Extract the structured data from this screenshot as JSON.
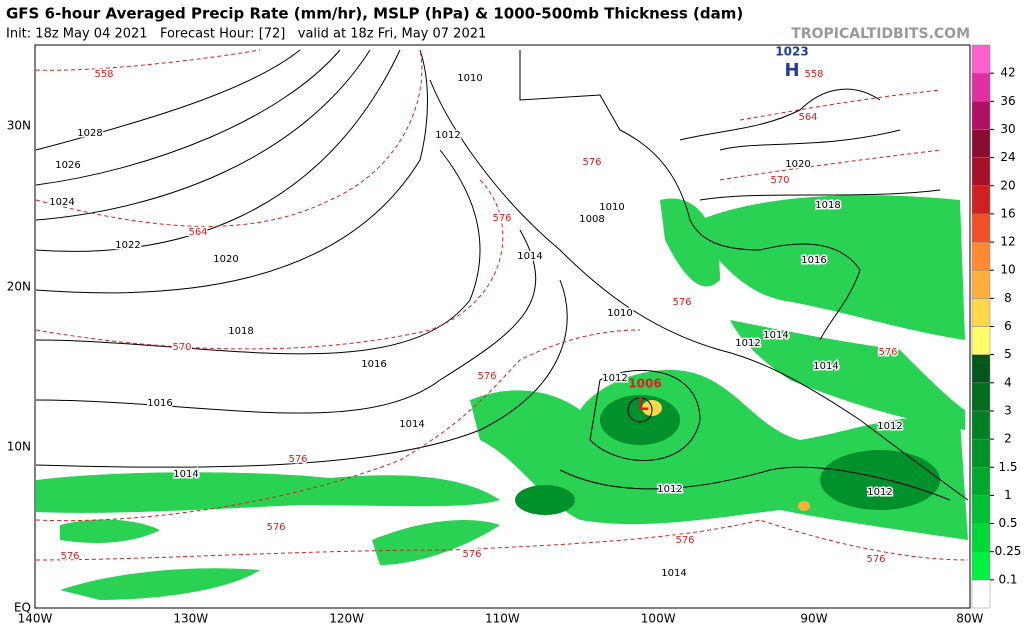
{
  "header": {
    "title": "GFS 6-hour Averaged Precip Rate (mm/hr), MSLP (hPa) & 1000-500mb Thickness (dam)",
    "subtitle": "Init: 18z May 04 2021   Forecast Hour: [72]   valid at 18z Fri, May 07 2021",
    "watermark": "TROPICALTIDBITS.COM"
  },
  "map": {
    "lat_labels": [
      "30N",
      "20N",
      "10N",
      "EQ"
    ],
    "lon_labels": [
      "140W",
      "130W",
      "120W",
      "110W",
      "100W",
      "90W",
      "80W"
    ],
    "mslp_labels": [
      "1010",
      "1012",
      "1028",
      "1026",
      "1024",
      "1022",
      "1020",
      "1014",
      "1018",
      "1016",
      "1016",
      "1014",
      "1014",
      "1010",
      "1008",
      "1010",
      "1020",
      "1018",
      "1016",
      "1014",
      "1012",
      "1014",
      "1012",
      "1012",
      "1012",
      "1012",
      "1014"
    ],
    "thickness_labels": [
      "558",
      "558",
      "564",
      "576",
      "570",
      "564",
      "576",
      "576",
      "570",
      "576",
      "576",
      "576",
      "576",
      "576",
      "576",
      "576",
      "576"
    ],
    "high": {
      "pressure": "1023",
      "symbol": "H"
    },
    "low": {
      "pressure": "1006",
      "symbol": "L"
    },
    "mslp_color": "#000000",
    "thickness_color": "#d62020",
    "high_color": "#1f3f8f",
    "low_color": "#d62020"
  },
  "colorbar": {
    "levels": [
      0.1,
      0.25,
      0.5,
      1,
      1.5,
      2,
      3,
      4,
      5,
      6,
      8,
      10,
      12,
      16,
      20,
      24,
      30,
      36,
      42
    ],
    "colors": [
      "#ffffff",
      "#00f040",
      "#00d83a",
      "#00c034",
      "#00a82e",
      "#009428",
      "#008024",
      "#006c1e",
      "#005818",
      "#ffff66",
      "#ffd84a",
      "#ffb03c",
      "#ff8a30",
      "#f05028",
      "#d02020",
      "#a8102a",
      "#880c30",
      "#b01060",
      "#e030a0",
      "#ff60d0"
    ]
  }
}
